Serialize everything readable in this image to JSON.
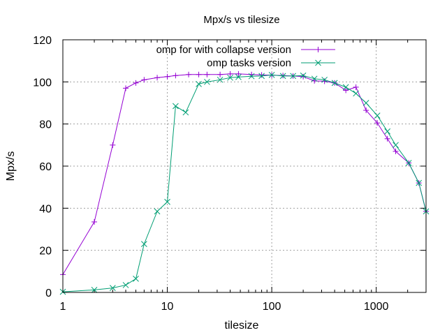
{
  "chart_data": {
    "type": "line",
    "title": "Mpx/s vs tilesize",
    "xlabel": "tilesize",
    "ylabel": "Mpx/s",
    "xscale": "log",
    "xlim": [
      1,
      3000
    ],
    "ylim": [
      0,
      120
    ],
    "xticks": [
      1,
      10,
      100,
      1000
    ],
    "xtick_labels": [
      "1",
      "10",
      "100",
      "1000"
    ],
    "yticks": [
      0,
      20,
      40,
      60,
      80,
      100,
      120
    ],
    "ytick_labels": [
      "0",
      "20",
      "40",
      "60",
      "80",
      "100",
      "120"
    ],
    "grid": true,
    "legend_position": "top-center",
    "series": [
      {
        "name": "omp for with collapse version",
        "color": "#9400d3",
        "marker": "plus",
        "x": [
          1,
          2,
          3,
          4,
          5,
          6,
          8,
          10,
          12,
          16,
          20,
          24,
          32,
          40,
          48,
          64,
          80,
          100,
          128,
          160,
          200,
          256,
          320,
          400,
          512,
          640,
          800,
          1024,
          1280,
          1536,
          2048,
          2560,
          3000
        ],
        "y": [
          8.5,
          33.5,
          70,
          97,
          99.5,
          101,
          102,
          102.5,
          103,
          103.5,
          103.5,
          103.5,
          103.5,
          103.8,
          103.8,
          103.5,
          103.3,
          103.2,
          103,
          102.8,
          102.5,
          100.5,
          100.3,
          99.5,
          96,
          97.5,
          86.5,
          80.5,
          73,
          67,
          61.5,
          52,
          38.5
        ]
      },
      {
        "name": "omp tasks version",
        "color": "#009e73",
        "marker": "cross",
        "x": [
          1,
          2,
          3,
          4,
          5,
          6,
          8,
          10,
          12,
          15,
          20,
          24,
          32,
          40,
          48,
          64,
          80,
          100,
          128,
          160,
          200,
          256,
          320,
          400,
          512,
          640,
          800,
          1024,
          1280,
          1536,
          2048,
          2560,
          3000
        ],
        "y": [
          0.3,
          1.2,
          2.1,
          3.5,
          6.5,
          23,
          38.5,
          43,
          88.5,
          85.5,
          99,
          100,
          101,
          102,
          102.3,
          102.7,
          102.8,
          103.3,
          102.8,
          102.8,
          103,
          101.5,
          101,
          99.5,
          97.5,
          94.5,
          90,
          84,
          76.5,
          70,
          61.5,
          52,
          38.5
        ]
      }
    ]
  }
}
